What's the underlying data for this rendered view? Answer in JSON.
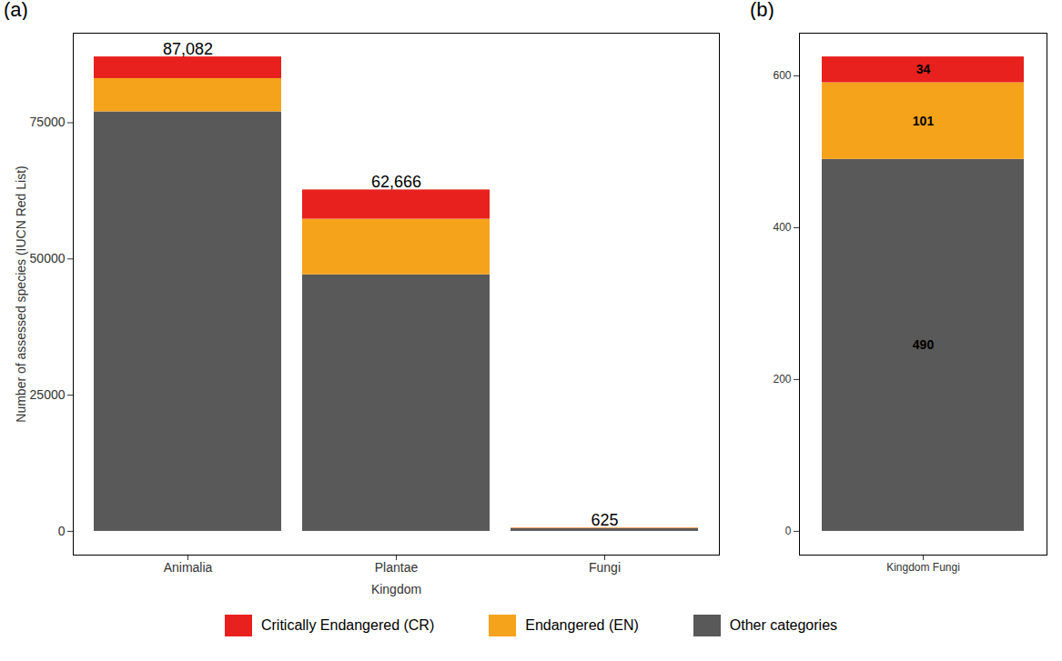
{
  "chart_data": [
    {
      "type": "bar",
      "title": "(a)",
      "stacked": true,
      "categories": [
        "Animalia",
        "Plantae",
        "Fungi"
      ],
      "x_label": "Kingdom",
      "y_label": "Number of assessed species (IUCN Red List)",
      "series": [
        {
          "name": "Critically Endangered (CR)",
          "color": "#e8211e",
          "values": [
            3982,
            5366,
            34
          ]
        },
        {
          "name": "Endangered (EN)",
          "color": "#f6a31c",
          "values": [
            6100,
            10200,
            101
          ]
        },
        {
          "name": "Other categories",
          "color": "#595959",
          "values": [
            77000,
            47100,
            490
          ]
        }
      ],
      "totals": [
        87082,
        62666,
        625
      ],
      "total_labels": [
        "87,082",
        "62,666",
        "625"
      ],
      "ylim": [
        -4354,
        91436
      ],
      "yticks": [
        0,
        25000,
        50000,
        75000
      ],
      "legend": "bottom"
    },
    {
      "type": "bar",
      "title": "(b)",
      "stacked": true,
      "data_labels": true,
      "categories": [
        "Kingdom Fungi"
      ],
      "series": [
        {
          "name": "Critically Endangered (CR)",
          "color": "#e8211e",
          "values": [
            34
          ]
        },
        {
          "name": "Endangered (EN)",
          "color": "#f6a31c",
          "values": [
            101
          ]
        },
        {
          "name": "Other categories",
          "color": "#595959",
          "values": [
            490
          ]
        }
      ],
      "ylim": [
        -31.25,
        656.25
      ],
      "yticks": [
        0,
        200,
        400,
        600
      ]
    }
  ]
}
